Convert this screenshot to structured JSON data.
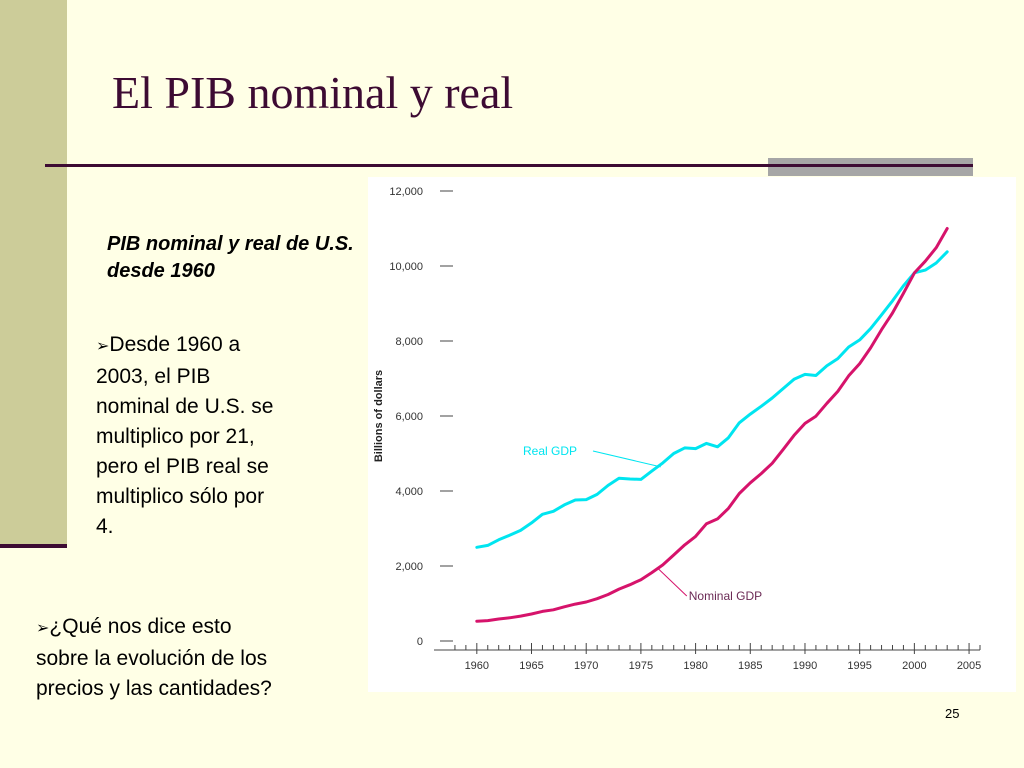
{
  "slide": {
    "title": "El PIB nominal y real",
    "subtitle": "PIB nominal y real de U.S. desde 1960",
    "bullet1": "Desde 1960 a 2003, el PIB nominal de U.S. se multiplico por 21, pero el PIB real se multiplico sólo por 4.",
    "bullet2": "¿Qué nos dice esto sobre la evolución de los precios y las cantidades?",
    "page_number": "25"
  },
  "chart_data": {
    "type": "line",
    "ylabel": "Billions of dollars",
    "xlabel": "",
    "xlim": [
      1957,
      2006
    ],
    "ylim": [
      0,
      12000
    ],
    "x_ticks": [
      1960,
      1965,
      1970,
      1975,
      1980,
      1985,
      1990,
      1995,
      2000,
      2005
    ],
    "y_ticks": [
      0,
      2000,
      4000,
      6000,
      8000,
      10000,
      12000
    ],
    "y_tick_labels": [
      "0",
      "2,000",
      "4,000",
      "6,000",
      "8,000",
      "10,000",
      "12,000"
    ],
    "grid": false,
    "series": [
      {
        "name": "Real GDP",
        "color": "#00e5f0",
        "x": [
          1960,
          1961,
          1962,
          1963,
          1964,
          1965,
          1966,
          1967,
          1968,
          1969,
          1970,
          1971,
          1972,
          1973,
          1974,
          1975,
          1976,
          1977,
          1978,
          1979,
          1980,
          1981,
          1982,
          1983,
          1984,
          1985,
          1986,
          1987,
          1988,
          1989,
          1990,
          1991,
          1992,
          1993,
          1994,
          1995,
          1996,
          1997,
          1998,
          1999,
          2000,
          2001,
          2002,
          2003
        ],
        "values": [
          2500,
          2550,
          2700,
          2820,
          2950,
          3150,
          3380,
          3460,
          3630,
          3760,
          3770,
          3910,
          4150,
          4340,
          4320,
          4310,
          4530,
          4750,
          5000,
          5150,
          5130,
          5270,
          5180,
          5420,
          5820,
          6050,
          6260,
          6480,
          6730,
          6980,
          7110,
          7080,
          7340,
          7530,
          7840,
          8030,
          8330,
          8700,
          9070,
          9470,
          9820,
          9890,
          10080,
          10380
        ]
      },
      {
        "name": "Nominal GDP",
        "color": "#d6136b",
        "x": [
          1960,
          1961,
          1962,
          1963,
          1964,
          1965,
          1966,
          1967,
          1968,
          1969,
          1970,
          1971,
          1972,
          1973,
          1974,
          1975,
          1976,
          1977,
          1978,
          1979,
          1980,
          1981,
          1982,
          1983,
          1984,
          1985,
          1986,
          1987,
          1988,
          1989,
          1990,
          1991,
          1992,
          1993,
          1994,
          1995,
          1996,
          1997,
          1998,
          1999,
          2000,
          2001,
          2002,
          2003
        ],
        "values": [
          527,
          545,
          586,
          618,
          664,
          720,
          789,
          833,
          911,
          985,
          1040,
          1128,
          1241,
          1385,
          1501,
          1635,
          1824,
          2030,
          2294,
          2563,
          2789,
          3128,
          3255,
          3537,
          3933,
          4220,
          4463,
          4739,
          5104,
          5484,
          5803,
          5996,
          6338,
          6657,
          7072,
          7398,
          7817,
          8304,
          8747,
          9268,
          9817,
          10128,
          10487,
          11000
        ]
      }
    ],
    "annotations": [
      {
        "text": "Real GDP",
        "series": "Real GDP"
      },
      {
        "text": "Nominal GDP",
        "series": "Nominal GDP"
      }
    ]
  }
}
